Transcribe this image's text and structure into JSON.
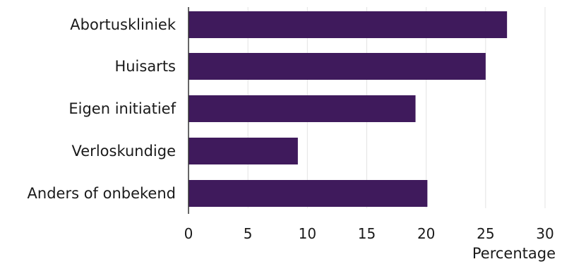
{
  "chart_data": {
    "type": "bar",
    "orientation": "horizontal",
    "categories": [
      "Abortuskliniek",
      "Huisarts",
      "Eigen initiatief",
      "Verloskundige",
      "Anders of onbekend"
    ],
    "values": [
      26.8,
      25.0,
      19.1,
      9.2,
      20.1
    ],
    "xlabel": "Percentage",
    "ylabel": "",
    "xlim": [
      0,
      30
    ],
    "xticks": [
      "0",
      "5",
      "10",
      "15",
      "20",
      "25",
      "30"
    ],
    "grid": true,
    "bar_color": "#3f1a5c",
    "grid_color": "#e3e3e3",
    "axis_color": "#333333"
  }
}
